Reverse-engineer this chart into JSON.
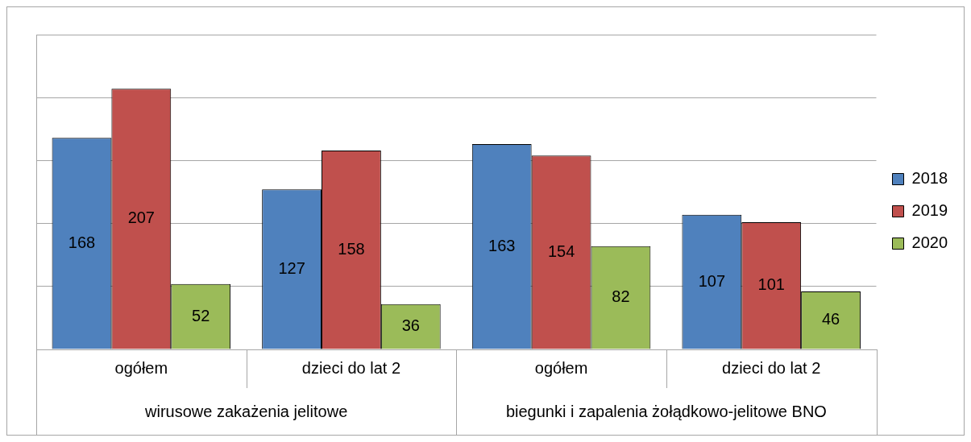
{
  "chart_data": {
    "type": "bar",
    "categories": [
      "ogółem",
      "dzieci do lat 2",
      "ogółem",
      "dzieci do lat 2"
    ],
    "series": [
      {
        "name": "2018",
        "color": "#4f81bd",
        "values": [
          168,
          127,
          163,
          107
        ]
      },
      {
        "name": "2019",
        "color": "#c0504d",
        "values": [
          207,
          158,
          154,
          101
        ]
      },
      {
        "name": "2020",
        "color": "#9bbb59",
        "values": [
          52,
          36,
          82,
          46
        ]
      }
    ],
    "annotations": [
      "wirusowe zakażenia jelitowe",
      "biegunki i zapalenia żołądkowo-jelitowe BNO"
    ],
    "ylim": [
      0,
      250
    ],
    "yticks": [
      {
        "value": 0,
        "label": null
      },
      {
        "value": 50,
        "label": null
      },
      {
        "value": 100,
        "label": null
      },
      {
        "value": 150,
        "label": null
      },
      {
        "value": 200,
        "label": null
      },
      {
        "value": 250,
        "label": null
      }
    ],
    "grid": "y",
    "legend": "right",
    "data_labels": true
  }
}
